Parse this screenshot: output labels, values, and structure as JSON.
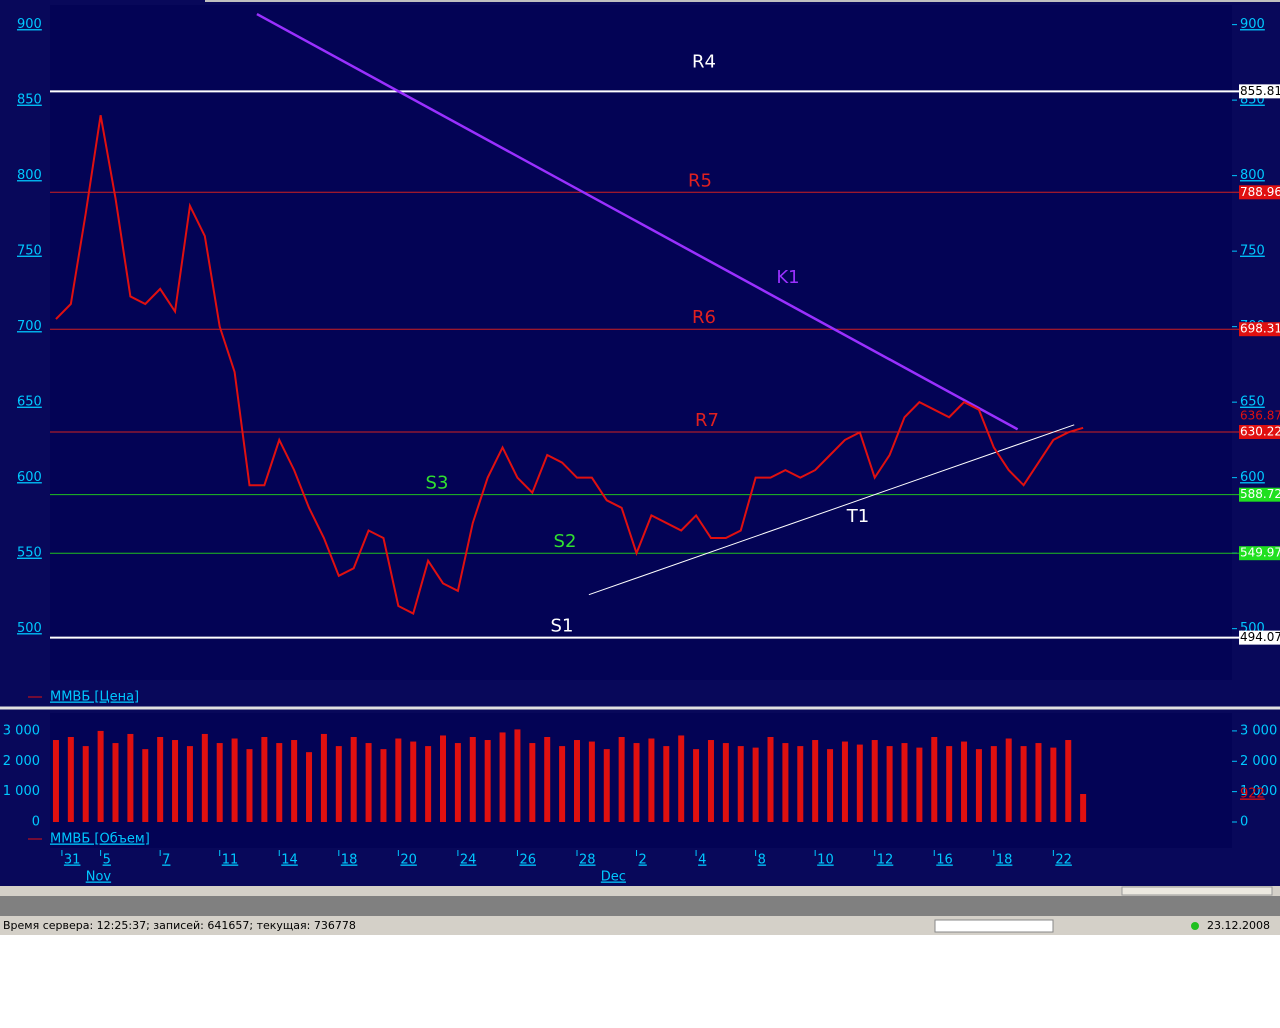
{
  "chart_data": [
    {
      "type": "line",
      "name": "ММВБ [Цена]",
      "color": "#e01010",
      "x": [
        0.5,
        1,
        1.5,
        2,
        2.5,
        3,
        3.5,
        4,
        4.5,
        5,
        5.5,
        6,
        6.5,
        7,
        7.5,
        8,
        8.5,
        9,
        9.5,
        10,
        10.5,
        11,
        11.5,
        12,
        12.5,
        13,
        13.5,
        14,
        14.5,
        15,
        15.5,
        16,
        16.5,
        17,
        17.5,
        18,
        18.5,
        19,
        19.5,
        20,
        20.5,
        21,
        21.5,
        22,
        22.5,
        23,
        23.5,
        24,
        24.5,
        25,
        25.5,
        26,
        26.5,
        27,
        27.5,
        28,
        28.5,
        29,
        29.5,
        30,
        30.5,
        31,
        31.5,
        32,
        32.5,
        33,
        33.5,
        34,
        34.5,
        35
      ],
      "values": [
        705,
        715,
        775,
        840,
        785,
        720,
        715,
        725,
        710,
        780,
        760,
        700,
        670,
        595,
        595,
        625,
        605,
        580,
        560,
        535,
        540,
        565,
        560,
        515,
        510,
        545,
        530,
        525,
        570,
        600,
        620,
        600,
        590,
        615,
        610,
        600,
        600,
        585,
        580,
        550,
        575,
        570,
        565,
        575,
        560,
        560,
        565,
        600,
        600,
        605,
        600,
        605,
        615,
        625,
        630,
        600,
        615,
        640,
        650,
        645,
        640,
        650,
        645,
        620,
        605,
        595,
        610,
        625,
        630,
        633
      ],
      "xlim": [
        0.3,
        40
      ],
      "ylim": [
        466,
        913
      ],
      "yticks": [
        500,
        550,
        600,
        650,
        700,
        750,
        800,
        850,
        900
      ],
      "last_price": 636.87,
      "levels": [
        {
          "name": "R4",
          "value": 855.81,
          "color": "#ffffff",
          "label_bg": "#ffffff",
          "label_fg": "#000000"
        },
        {
          "name": "R5",
          "value": 788.96,
          "color": "#d02020",
          "label_bg": "#e01010",
          "label_fg": "#ffffff"
        },
        {
          "name": "R6",
          "value": 698.31,
          "color": "#d02020",
          "label_bg": "#e01010",
          "label_fg": "#ffffff"
        },
        {
          "name": "R7",
          "value": 630.22,
          "color": "#d02020",
          "label_bg": "#e01010",
          "label_fg": "#ffffff"
        },
        {
          "name": "S3",
          "value": 588.72,
          "color": "#20c020",
          "label_bg": "#20e020",
          "label_fg": "#ffffff"
        },
        {
          "name": "S2",
          "value": 549.97,
          "color": "#20c020",
          "label_bg": "#20e020",
          "label_fg": "#ffffff"
        },
        {
          "name": "S1",
          "value": 494.07,
          "color": "#ffffff",
          "label_bg": "#ffffff",
          "label_fg": "#000000"
        }
      ],
      "trendlines": [
        {
          "name": "K1",
          "color": "#9a30ff",
          "x": [
            7.25,
            32.8
          ],
          "values": [
            907,
            632
          ]
        },
        {
          "name": "T1",
          "color": "#ffffff",
          "x": [
            18.4,
            34.7
          ],
          "values": [
            522.5,
            635
          ]
        }
      ]
    },
    {
      "type": "bar",
      "name": "ММВБ [Объем]",
      "color": "#e01010",
      "x": [
        0.5,
        1,
        1.5,
        2,
        2.5,
        3,
        3.5,
        4,
        4.5,
        5,
        5.5,
        6,
        6.5,
        7,
        7.5,
        8,
        8.5,
        9,
        9.5,
        10,
        10.5,
        11,
        11.5,
        12,
        12.5,
        13,
        13.5,
        14,
        14.5,
        15,
        15.5,
        16,
        16.5,
        17,
        17.5,
        18,
        18.5,
        19,
        19.5,
        20,
        20.5,
        21,
        21.5,
        22,
        22.5,
        23,
        23.5,
        24,
        24.5,
        25,
        25.5,
        26,
        26.5,
        27,
        27.5,
        28,
        28.5,
        29,
        29.5,
        30,
        30.5,
        31,
        31.5,
        32,
        32.5,
        33,
        33.5,
        34,
        34.5,
        35
      ],
      "values": [
        2700,
        2800,
        2500,
        3000,
        2600,
        2900,
        2400,
        2800,
        2700,
        2500,
        2900,
        2600,
        2750,
        2400,
        2800,
        2600,
        2700,
        2300,
        2900,
        2500,
        2800,
        2600,
        2400,
        2750,
        2650,
        2500,
        2850,
        2600,
        2800,
        2700,
        2950,
        3050,
        2600,
        2800,
        2500,
        2700,
        2650,
        2400,
        2800,
        2600,
        2750,
        2500,
        2850,
        2400,
        2700,
        2600,
        2500,
        2450,
        2800,
        2600,
        2500,
        2700,
        2400,
        2650,
        2550,
        2700,
        2500,
        2600,
        2450,
        2800,
        2500,
        2650,
        2400,
        2500,
        2750,
        2500,
        2600,
        2450,
        2700,
        922
      ],
      "last_value": 922,
      "xlim": [
        0.3,
        40
      ],
      "ylim": [
        0,
        3590
      ],
      "yticks": [
        0,
        {
          "value": 1000,
          "label": "1 000"
        },
        {
          "value": 2000,
          "label": "2 000"
        },
        {
          "value": 3000,
          "label": "3 000"
        }
      ],
      "xticks": [
        {
          "value": 0.7,
          "label": "31"
        },
        {
          "value": 2,
          "label": "5"
        },
        {
          "value": 4,
          "label": "7"
        },
        {
          "value": 6,
          "label": "11"
        },
        {
          "value": 8,
          "label": "14"
        },
        {
          "value": 10,
          "label": "18"
        },
        {
          "value": 12,
          "label": "20"
        },
        {
          "value": 14,
          "label": "24"
        },
        {
          "value": 16,
          "label": "26"
        },
        {
          "value": 18,
          "label": "28"
        },
        {
          "value": 20,
          "label": "2"
        },
        {
          "value": 22,
          "label": "4"
        },
        {
          "value": 24,
          "label": "8"
        },
        {
          "value": 26,
          "label": "10"
        },
        {
          "value": 28,
          "label": "12"
        },
        {
          "value": 30,
          "label": "16"
        },
        {
          "value": 32,
          "label": "18"
        },
        {
          "value": 34,
          "label": "22"
        }
      ],
      "month_labels": [
        {
          "value": 1.5,
          "label": "Nov"
        },
        {
          "value": 18.8,
          "label": "Dec"
        }
      ]
    }
  ],
  "status_bar": {
    "text": "Время сервера: 12:25:37; записей: 641657; текущая: 736778",
    "date": "23.12.2008"
  }
}
